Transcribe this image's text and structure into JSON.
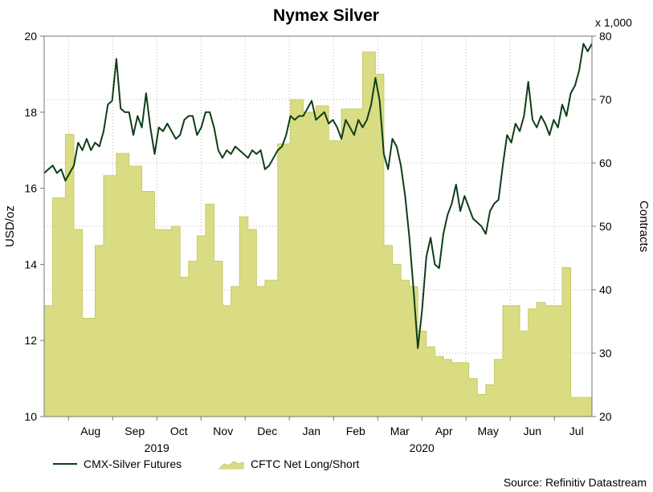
{
  "chart_data": {
    "type": "line+area",
    "title": "Nymex Silver",
    "multiplier": "x 1,000",
    "ylabel_left": "USD/oz",
    "ylabel_right": "Contracts",
    "ylim_left": [
      10,
      20
    ],
    "yticks_left": [
      10,
      12,
      14,
      16,
      18,
      20
    ],
    "ylim_right": [
      20,
      80
    ],
    "yticks_right": [
      20,
      30,
      40,
      50,
      60,
      70,
      80
    ],
    "months": [
      "Aug",
      "Sep",
      "Oct",
      "Nov",
      "Dec",
      "Jan",
      "Feb",
      "Mar",
      "Apr",
      "May",
      "Jun",
      "Jul"
    ],
    "years": [
      "2019",
      "2020"
    ],
    "source": "Source: Refinitiv Datastream",
    "grid": true,
    "legend_position": "bottom-left",
    "colors": {
      "line": "#0f3d17",
      "area_fill": "#d9dc82",
      "area_edge": "#c8cb6a"
    },
    "series": [
      {
        "name": "CMX-Silver Futures",
        "axis": "left",
        "kind": "line",
        "points": [
          [
            0,
            16.4
          ],
          [
            1,
            16.5
          ],
          [
            2,
            16.6
          ],
          [
            3,
            16.4
          ],
          [
            4,
            16.5
          ],
          [
            5,
            16.2
          ],
          [
            6,
            16.4
          ],
          [
            7,
            16.6
          ],
          [
            8,
            17.2
          ],
          [
            9,
            17.0
          ],
          [
            10,
            17.3
          ],
          [
            11,
            17.0
          ],
          [
            12,
            17.2
          ],
          [
            13,
            17.1
          ],
          [
            14,
            17.5
          ],
          [
            15,
            18.2
          ],
          [
            16,
            18.3
          ],
          [
            17,
            19.4
          ],
          [
            18,
            18.1
          ],
          [
            19,
            18.0
          ],
          [
            20,
            18.0
          ],
          [
            21,
            17.4
          ],
          [
            22,
            17.9
          ],
          [
            23,
            17.6
          ],
          [
            24,
            18.5
          ],
          [
            25,
            17.6
          ],
          [
            26,
            16.9
          ],
          [
            27,
            17.6
          ],
          [
            28,
            17.5
          ],
          [
            29,
            17.7
          ],
          [
            30,
            17.5
          ],
          [
            31,
            17.3
          ],
          [
            32,
            17.4
          ],
          [
            33,
            17.8
          ],
          [
            34,
            17.9
          ],
          [
            35,
            17.9
          ],
          [
            36,
            17.4
          ],
          [
            37,
            17.6
          ],
          [
            38,
            18.0
          ],
          [
            39,
            18.0
          ],
          [
            40,
            17.6
          ],
          [
            41,
            17.0
          ],
          [
            42,
            16.8
          ],
          [
            43,
            17.0
          ],
          [
            44,
            16.9
          ],
          [
            45,
            17.1
          ],
          [
            46,
            17.0
          ],
          [
            47,
            16.9
          ],
          [
            48,
            16.8
          ],
          [
            49,
            17.0
          ],
          [
            50,
            16.9
          ],
          [
            51,
            17.0
          ],
          [
            52,
            16.5
          ],
          [
            53,
            16.6
          ],
          [
            54,
            16.8
          ],
          [
            55,
            17.0
          ],
          [
            56,
            17.1
          ],
          [
            57,
            17.4
          ],
          [
            58,
            17.9
          ],
          [
            59,
            17.8
          ],
          [
            60,
            17.9
          ],
          [
            61,
            17.9
          ],
          [
            62,
            18.1
          ],
          [
            63,
            18.3
          ],
          [
            64,
            17.8
          ],
          [
            65,
            17.9
          ],
          [
            66,
            18.0
          ],
          [
            67,
            17.7
          ],
          [
            68,
            17.8
          ],
          [
            69,
            17.6
          ],
          [
            70,
            17.3
          ],
          [
            71,
            17.8
          ],
          [
            72,
            17.6
          ],
          [
            73,
            17.4
          ],
          [
            74,
            17.8
          ],
          [
            75,
            17.6
          ],
          [
            76,
            17.8
          ],
          [
            77,
            18.2
          ],
          [
            78,
            18.9
          ],
          [
            79,
            18.3
          ],
          [
            80,
            16.9
          ],
          [
            81,
            16.5
          ],
          [
            82,
            17.3
          ],
          [
            83,
            17.1
          ],
          [
            84,
            16.6
          ],
          [
            85,
            15.8
          ],
          [
            86,
            14.7
          ],
          [
            87,
            13.3
          ],
          [
            88,
            11.8
          ],
          [
            89,
            12.8
          ],
          [
            90,
            14.2
          ],
          [
            91,
            14.7
          ],
          [
            92,
            14.0
          ],
          [
            93,
            13.9
          ],
          [
            94,
            14.8
          ],
          [
            95,
            15.3
          ],
          [
            96,
            15.6
          ],
          [
            97,
            16.1
          ],
          [
            98,
            15.4
          ],
          [
            99,
            15.8
          ],
          [
            100,
            15.5
          ],
          [
            101,
            15.2
          ],
          [
            102,
            15.1
          ],
          [
            103,
            15.0
          ],
          [
            104,
            14.8
          ],
          [
            105,
            15.4
          ],
          [
            106,
            15.6
          ],
          [
            107,
            15.7
          ],
          [
            108,
            16.6
          ],
          [
            109,
            17.4
          ],
          [
            110,
            17.2
          ],
          [
            111,
            17.7
          ],
          [
            112,
            17.5
          ],
          [
            113,
            17.9
          ],
          [
            114,
            18.8
          ],
          [
            115,
            17.8
          ],
          [
            116,
            17.6
          ],
          [
            117,
            17.9
          ],
          [
            118,
            17.7
          ],
          [
            119,
            17.4
          ],
          [
            120,
            17.8
          ],
          [
            121,
            17.6
          ],
          [
            122,
            18.2
          ],
          [
            123,
            17.9
          ],
          [
            124,
            18.5
          ],
          [
            125,
            18.7
          ],
          [
            126,
            19.1
          ],
          [
            127,
            19.8
          ],
          [
            128,
            19.6
          ],
          [
            129,
            19.8
          ]
        ]
      },
      {
        "name": "CFTC Net Long/Short",
        "axis": "right",
        "kind": "area",
        "points": [
          [
            0,
            37.5
          ],
          [
            2,
            54.5
          ],
          [
            5,
            64.5
          ],
          [
            7,
            49.5
          ],
          [
            9,
            35.5
          ],
          [
            12,
            47.0
          ],
          [
            14,
            58.0
          ],
          [
            17,
            61.5
          ],
          [
            20,
            59.5
          ],
          [
            23,
            55.5
          ],
          [
            26,
            49.5
          ],
          [
            28,
            49.5
          ],
          [
            30,
            50.0
          ],
          [
            32,
            42.0
          ],
          [
            34,
            44.5
          ],
          [
            36,
            48.5
          ],
          [
            38,
            53.5
          ],
          [
            40,
            44.5
          ],
          [
            42,
            37.5
          ],
          [
            44,
            40.5
          ],
          [
            46,
            51.5
          ],
          [
            48,
            49.5
          ],
          [
            50,
            40.5
          ],
          [
            52,
            41.5
          ],
          [
            55,
            63.0
          ],
          [
            58,
            70.0
          ],
          [
            61,
            68.0
          ],
          [
            64,
            69.0
          ],
          [
            67,
            63.5
          ],
          [
            70,
            68.5
          ],
          [
            73,
            68.5
          ],
          [
            75,
            77.5
          ],
          [
            78,
            74.0
          ],
          [
            80,
            47.0
          ],
          [
            82,
            44.0
          ],
          [
            84,
            41.5
          ],
          [
            86,
            40.5
          ],
          [
            88,
            33.5
          ],
          [
            90,
            31.0
          ],
          [
            92,
            29.5
          ],
          [
            94,
            29.0
          ],
          [
            96,
            28.5
          ],
          [
            98,
            28.5
          ],
          [
            100,
            26.0
          ],
          [
            102,
            23.5
          ],
          [
            104,
            25.0
          ],
          [
            106,
            29.0
          ],
          [
            108,
            37.5
          ],
          [
            110,
            37.5
          ],
          [
            112,
            33.5
          ],
          [
            114,
            37.0
          ],
          [
            116,
            38.0
          ],
          [
            118,
            37.5
          ],
          [
            120,
            37.5
          ],
          [
            122,
            43.5
          ],
          [
            124,
            23.0
          ]
        ]
      }
    ]
  }
}
